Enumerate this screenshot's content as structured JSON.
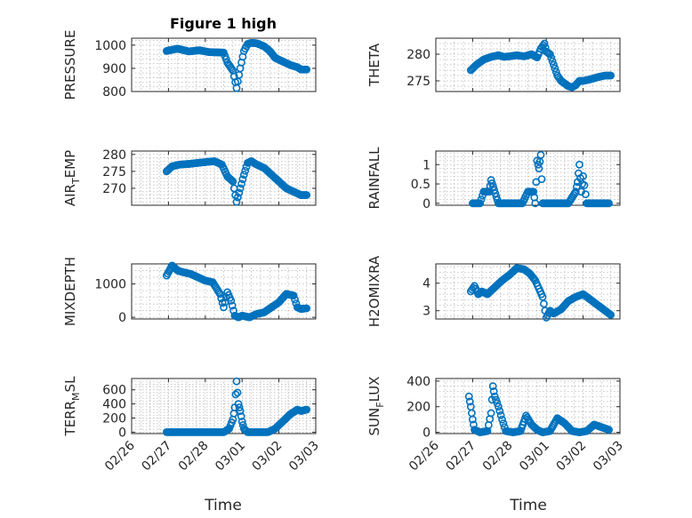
{
  "figure": {
    "title": "Figure 1 high",
    "xlabel": "Time"
  },
  "colors": {
    "marker": "#0072BD",
    "axis": "#262626",
    "grid": "#b0b0b0"
  },
  "x_ticks": [
    "02/26",
    "02/27",
    "02/28",
    "03/01",
    "03/02",
    "03/03"
  ],
  "chart_data": [
    {
      "type": "scatter",
      "name": "pressure",
      "ylabel_main": "PRESSURE",
      "ylabel_sub": "",
      "ylabel_tail": "",
      "ylim": [
        800,
        1030
      ],
      "yticks": [
        800,
        900,
        1000
      ],
      "grid": true,
      "x": [
        0.95,
        1.25,
        1.55,
        1.85,
        2.1,
        2.5,
        2.6,
        2.75,
        2.85,
        2.95,
        3.05,
        3.15,
        3.25,
        3.4,
        3.6,
        3.75,
        3.9,
        4.1,
        4.3,
        4.5,
        4.6,
        4.75
      ],
      "y": [
        975,
        985,
        973,
        978,
        970,
        968,
        925,
        890,
        815,
        900,
        975,
        1005,
        1010,
        1008,
        995,
        975,
        945,
        930,
        915,
        905,
        895,
        895
      ]
    },
    {
      "type": "scatter",
      "name": "theta",
      "ylabel_main": "THETA",
      "ylabel_sub": "",
      "ylabel_tail": "",
      "ylim": [
        273,
        283
      ],
      "yticks": [
        275,
        280
      ],
      "grid": true,
      "x": [
        0.95,
        1.1,
        1.3,
        1.5,
        1.7,
        1.85,
        2.0,
        2.2,
        2.4,
        2.6,
        2.75,
        2.85,
        2.95,
        3.0,
        3.1,
        3.2,
        3.3,
        3.4,
        3.5,
        3.6,
        3.7,
        3.8,
        3.9,
        4.0,
        4.2,
        4.4,
        4.6,
        4.75
      ],
      "y": [
        277,
        278,
        279,
        279.5,
        279.8,
        279.5,
        279.6,
        279.8,
        279.6,
        280,
        279.4,
        281,
        282,
        280.5,
        280,
        278,
        276,
        275,
        274.5,
        274,
        273.8,
        274.2,
        275,
        275,
        275.3,
        275.7,
        276,
        276
      ]
    },
    {
      "type": "scatter",
      "name": "air_temp",
      "ylabel_main": "AIR",
      "ylabel_sub": "T",
      "ylabel_tail": "EMP",
      "ylim": [
        265,
        281
      ],
      "yticks": [
        270,
        275,
        280
      ],
      "grid": true,
      "x": [
        0.95,
        1.1,
        1.3,
        1.55,
        1.8,
        2.05,
        2.25,
        2.45,
        2.6,
        2.75,
        2.85,
        2.95,
        3.05,
        3.15,
        3.25,
        3.4,
        3.6,
        3.8,
        4.0,
        4.2,
        4.4,
        4.6,
        4.75
      ],
      "y": [
        275,
        276.5,
        277,
        277.2,
        277.5,
        277.8,
        278,
        277,
        273.5,
        272,
        266,
        270,
        274,
        277.5,
        278,
        277,
        276,
        274,
        272,
        270,
        269,
        268,
        268
      ]
    },
    {
      "type": "scatter",
      "name": "rainfall",
      "ylabel_main": "RAINFALL",
      "ylabel_sub": "",
      "ylabel_tail": "",
      "ylim": [
        -0.05,
        1.35
      ],
      "yticks": [
        0,
        0.5,
        1
      ],
      "grid": true,
      "x": [
        1.0,
        1.2,
        1.3,
        1.45,
        1.5,
        1.7,
        1.9,
        2.1,
        2.35,
        2.5,
        2.55,
        2.65,
        2.7,
        2.75,
        2.8,
        2.85,
        2.9,
        3.0,
        3.2,
        3.4,
        3.6,
        3.8,
        3.85,
        3.9,
        3.95,
        4.0,
        4.1,
        4.3,
        4.5,
        4.7
      ],
      "y": [
        0,
        0,
        0.3,
        0.3,
        0.6,
        0,
        0,
        0,
        0,
        0.3,
        0.3,
        0.3,
        0,
        1.1,
        0.9,
        1.25,
        0,
        0,
        0,
        0,
        0,
        0.3,
        0.55,
        1.0,
        0.3,
        0.7,
        0,
        0,
        0,
        0
      ]
    },
    {
      "type": "scatter",
      "name": "mixdepth",
      "ylabel_main": "MIXDEPTH",
      "ylabel_sub": "",
      "ylabel_tail": "",
      "ylim": [
        -50,
        1600
      ],
      "yticks": [
        0,
        1000
      ],
      "grid": true,
      "x": [
        0.95,
        1.1,
        1.25,
        1.4,
        1.6,
        1.8,
        2.0,
        2.2,
        2.4,
        2.5,
        2.6,
        2.7,
        2.8,
        2.9,
        3.0,
        3.2,
        3.4,
        3.6,
        3.8,
        4.0,
        4.2,
        4.4,
        4.5,
        4.6,
        4.75
      ],
      "y": [
        1250,
        1550,
        1400,
        1350,
        1300,
        1200,
        1100,
        1050,
        700,
        300,
        750,
        500,
        50,
        0,
        50,
        0,
        100,
        150,
        300,
        450,
        700,
        650,
        300,
        250,
        270
      ]
    },
    {
      "type": "scatter",
      "name": "h2omixra",
      "ylabel_main": "H2OMIXRA",
      "ylabel_sub": "",
      "ylabel_tail": "",
      "ylim": [
        2.7,
        4.7
      ],
      "yticks": [
        3,
        4
      ],
      "grid": true,
      "x": [
        0.95,
        1.05,
        1.15,
        1.25,
        1.4,
        1.6,
        1.8,
        2.0,
        2.2,
        2.4,
        2.55,
        2.7,
        2.8,
        2.9,
        3.0,
        3.1,
        3.2,
        3.4,
        3.6,
        3.8,
        4.0,
        4.2,
        4.4,
        4.6,
        4.75
      ],
      "y": [
        3.7,
        3.9,
        3.6,
        3.7,
        3.6,
        3.85,
        4.1,
        4.3,
        4.55,
        4.5,
        4.35,
        4.1,
        3.8,
        3.5,
        2.75,
        3.0,
        2.9,
        3.05,
        3.35,
        3.5,
        3.6,
        3.4,
        3.2,
        3.0,
        2.85
      ]
    },
    {
      "type": "scatter",
      "name": "terr_msl",
      "ylabel_main": "TERR",
      "ylabel_sub": "M",
      "ylabel_tail": "SL",
      "ylim": [
        -20,
        760
      ],
      "yticks": [
        0,
        200,
        400,
        600
      ],
      "grid": true,
      "x": [
        0.95,
        1.3,
        1.7,
        2.1,
        2.5,
        2.65,
        2.75,
        2.8,
        2.85,
        2.9,
        2.95,
        3.0,
        3.05,
        3.15,
        3.3,
        3.5,
        3.7,
        3.9,
        4.1,
        4.3,
        4.5,
        4.6,
        4.75
      ],
      "y": [
        0,
        0,
        0,
        0,
        0,
        50,
        180,
        350,
        720,
        400,
        300,
        150,
        50,
        0,
        0,
        0,
        0,
        50,
        150,
        250,
        320,
        300,
        320
      ]
    },
    {
      "type": "scatter",
      "name": "sun_flux",
      "ylabel_main": "SUN",
      "ylabel_sub": "F",
      "ylabel_tail": "LUX",
      "ylim": [
        -10,
        420
      ],
      "yticks": [
        0,
        200,
        400
      ],
      "grid": true,
      "x": [
        0.9,
        0.95,
        1.0,
        1.05,
        1.2,
        1.4,
        1.5,
        1.55,
        1.6,
        1.7,
        1.8,
        1.9,
        2.1,
        2.3,
        2.45,
        2.6,
        2.75,
        2.9,
        3.1,
        3.3,
        3.5,
        3.7,
        3.9,
        4.1,
        4.3,
        4.5,
        4.7
      ],
      "y": [
        280,
        200,
        100,
        20,
        0,
        10,
        150,
        360,
        280,
        200,
        100,
        10,
        0,
        10,
        130,
        60,
        20,
        0,
        10,
        110,
        70,
        10,
        0,
        10,
        60,
        40,
        20
      ]
    }
  ]
}
